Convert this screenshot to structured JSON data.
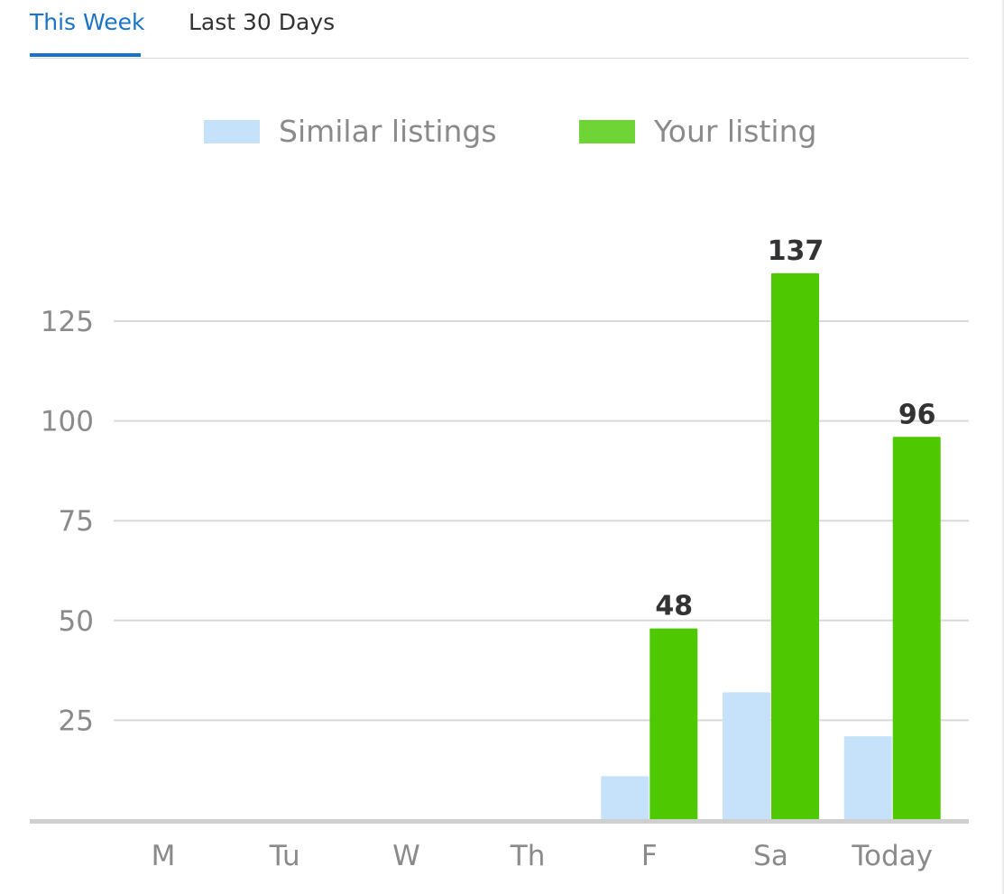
{
  "tabs": [
    {
      "label": "This Week",
      "active": true
    },
    {
      "label": "Last 30 Days",
      "active": false
    }
  ],
  "chart_data": {
    "type": "bar",
    "categories": [
      "M",
      "Tu",
      "W",
      "Th",
      "F",
      "Sa",
      "Today"
    ],
    "series": [
      {
        "name": "Similar listings",
        "color": "#c6e2fa",
        "values": [
          0,
          0,
          0,
          0,
          11,
          32,
          21
        ],
        "show_labels": false
      },
      {
        "name": "Your listing",
        "color": "#4ec800",
        "values": [
          0,
          0,
          0,
          0,
          48,
          137,
          96
        ],
        "show_labels": true
      }
    ],
    "y_ticks": [
      25,
      50,
      75,
      100,
      125
    ],
    "ylim": [
      0,
      137
    ],
    "grid": true,
    "legend_position": "top",
    "title": "",
    "xlabel": "",
    "ylabel": ""
  }
}
